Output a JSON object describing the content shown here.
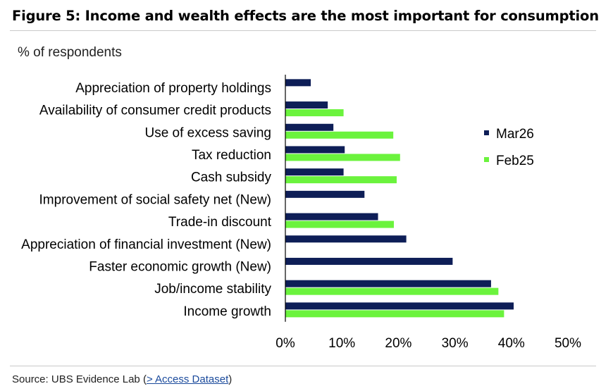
{
  "title": "Figure 5: Income and wealth effects are the most important for consumption",
  "source": {
    "prefix": "Source: UBS Evidence Lab (",
    "link": "> Access Dataset",
    "suffix": ")"
  },
  "colors": {
    "Mar26": "#0e1e57",
    "Feb25": "#6bf33d"
  },
  "chart_data": {
    "type": "bar",
    "orientation": "horizontal",
    "unit_label": "% of respondents",
    "categories": [
      "Appreciation of property holdings",
      "Availability of consumer credit products",
      "Use of excess saving",
      "Tax reduction",
      "Cash subsidy",
      "Improvement of social safety net (New)",
      "Trade-in discount",
      "Appreciation of financial investment (New)",
      "Faster economic growth (New)",
      "Job/income stability",
      "Income growth"
    ],
    "series": [
      {
        "name": "Mar26",
        "values": [
          4.5,
          7.5,
          8.5,
          10.5,
          10.3,
          14.0,
          16.4,
          21.4,
          29.6,
          36.4,
          40.4
        ]
      },
      {
        "name": "Feb25",
        "values": [
          null,
          10.3,
          19.1,
          20.3,
          19.7,
          null,
          19.2,
          null,
          null,
          37.7,
          38.7
        ]
      }
    ],
    "xlim": [
      0,
      50
    ],
    "xticks": [
      0,
      10,
      20,
      30,
      40,
      50
    ],
    "xtick_labels": [
      "0%",
      "10%",
      "20%",
      "30%",
      "40%",
      "50%"
    ],
    "legend": [
      "Mar26",
      "Feb25"
    ],
    "legend_position": "right",
    "grid": false
  }
}
